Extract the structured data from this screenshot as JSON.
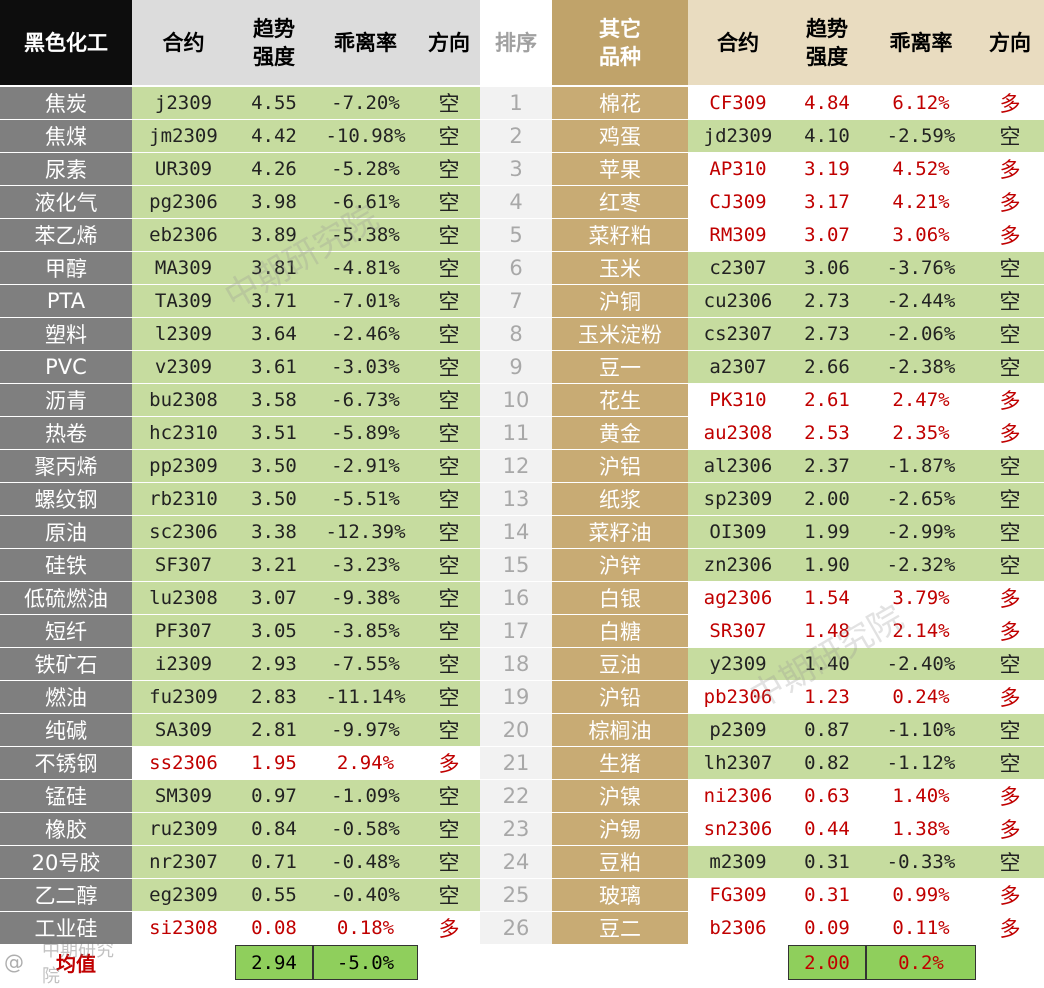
{
  "colors": {
    "black_header_bg": "#0d0d0d",
    "gray_header_bg": "#dcdcdc",
    "gold_header_bg": "#c0a36a",
    "tan_header_bg": "#e9dcc0",
    "left_name_bg": "#7f7f7f",
    "gold_name_bg": "#c8ab74",
    "rank_bg": "#f2f2f2",
    "green_bg": "#c6dc9f",
    "white_bg": "#ffffff",
    "red_text": "#c00000",
    "summary_green": "#8fcf5c",
    "summary_label": "#c00000"
  },
  "header": {
    "left_group": "黑色化工",
    "contract": "合约",
    "strength": "趋势\n强度",
    "deviation": "乖离率",
    "direction": "方向",
    "rank": "排序",
    "right_group": "其它\n品种",
    "contract_r": "合约",
    "strength_r": "趋势\n强度",
    "deviation_r": "乖离率",
    "direction_r": "方向"
  },
  "rows": [
    {
      "rank": "1",
      "left": {
        "name": "焦炭",
        "contract": "j2309",
        "strength": "4.55",
        "deviation": "-7.20%",
        "direction": "空",
        "dir": "short"
      },
      "right": {
        "name": "棉花",
        "contract": "CF309",
        "strength": "4.84",
        "deviation": "6.12%",
        "direction": "多",
        "dir": "long"
      }
    },
    {
      "rank": "2",
      "left": {
        "name": "焦煤",
        "contract": "jm2309",
        "strength": "4.42",
        "deviation": "-10.98%",
        "direction": "空",
        "dir": "short"
      },
      "right": {
        "name": "鸡蛋",
        "contract": "jd2309",
        "strength": "4.10",
        "deviation": "-2.59%",
        "direction": "空",
        "dir": "short"
      }
    },
    {
      "rank": "3",
      "left": {
        "name": "尿素",
        "contract": "UR309",
        "strength": "4.26",
        "deviation": "-5.28%",
        "direction": "空",
        "dir": "short"
      },
      "right": {
        "name": "苹果",
        "contract": "AP310",
        "strength": "3.19",
        "deviation": "4.52%",
        "direction": "多",
        "dir": "long"
      }
    },
    {
      "rank": "4",
      "left": {
        "name": "液化气",
        "contract": "pg2306",
        "strength": "3.98",
        "deviation": "-6.61%",
        "direction": "空",
        "dir": "short"
      },
      "right": {
        "name": "红枣",
        "contract": "CJ309",
        "strength": "3.17",
        "deviation": "4.21%",
        "direction": "多",
        "dir": "long"
      }
    },
    {
      "rank": "5",
      "left": {
        "name": "苯乙烯",
        "contract": "eb2306",
        "strength": "3.89",
        "deviation": "-5.38%",
        "direction": "空",
        "dir": "short"
      },
      "right": {
        "name": "菜籽粕",
        "contract": "RM309",
        "strength": "3.07",
        "deviation": "3.06%",
        "direction": "多",
        "dir": "long"
      }
    },
    {
      "rank": "6",
      "left": {
        "name": "甲醇",
        "contract": "MA309",
        "strength": "3.81",
        "deviation": "-4.81%",
        "direction": "空",
        "dir": "short"
      },
      "right": {
        "name": "玉米",
        "contract": "c2307",
        "strength": "3.06",
        "deviation": "-3.76%",
        "direction": "空",
        "dir": "short"
      }
    },
    {
      "rank": "7",
      "left": {
        "name": "PTA",
        "contract": "TA309",
        "strength": "3.71",
        "deviation": "-7.01%",
        "direction": "空",
        "dir": "short"
      },
      "right": {
        "name": "沪铜",
        "contract": "cu2306",
        "strength": "2.73",
        "deviation": "-2.44%",
        "direction": "空",
        "dir": "short"
      }
    },
    {
      "rank": "8",
      "left": {
        "name": "塑料",
        "contract": "l2309",
        "strength": "3.64",
        "deviation": "-2.46%",
        "direction": "空",
        "dir": "short"
      },
      "right": {
        "name": "玉米淀粉",
        "contract": "cs2307",
        "strength": "2.73",
        "deviation": "-2.06%",
        "direction": "空",
        "dir": "short"
      }
    },
    {
      "rank": "9",
      "left": {
        "name": "PVC",
        "contract": "v2309",
        "strength": "3.61",
        "deviation": "-3.03%",
        "direction": "空",
        "dir": "short"
      },
      "right": {
        "name": "豆一",
        "contract": "a2307",
        "strength": "2.66",
        "deviation": "-2.38%",
        "direction": "空",
        "dir": "short"
      }
    },
    {
      "rank": "10",
      "left": {
        "name": "沥青",
        "contract": "bu2308",
        "strength": "3.58",
        "deviation": "-6.73%",
        "direction": "空",
        "dir": "short"
      },
      "right": {
        "name": "花生",
        "contract": "PK310",
        "strength": "2.61",
        "deviation": "2.47%",
        "direction": "多",
        "dir": "long"
      }
    },
    {
      "rank": "11",
      "left": {
        "name": "热卷",
        "contract": "hc2310",
        "strength": "3.51",
        "deviation": "-5.89%",
        "direction": "空",
        "dir": "short"
      },
      "right": {
        "name": "黄金",
        "contract": "au2308",
        "strength": "2.53",
        "deviation": "2.35%",
        "direction": "多",
        "dir": "long"
      }
    },
    {
      "rank": "12",
      "left": {
        "name": "聚丙烯",
        "contract": "pp2309",
        "strength": "3.50",
        "deviation": "-2.91%",
        "direction": "空",
        "dir": "short"
      },
      "right": {
        "name": "沪铝",
        "contract": "al2306",
        "strength": "2.37",
        "deviation": "-1.87%",
        "direction": "空",
        "dir": "short"
      }
    },
    {
      "rank": "13",
      "left": {
        "name": "螺纹钢",
        "contract": "rb2310",
        "strength": "3.50",
        "deviation": "-5.51%",
        "direction": "空",
        "dir": "short"
      },
      "right": {
        "name": "纸浆",
        "contract": "sp2309",
        "strength": "2.00",
        "deviation": "-2.65%",
        "direction": "空",
        "dir": "short"
      }
    },
    {
      "rank": "14",
      "left": {
        "name": "原油",
        "contract": "sc2306",
        "strength": "3.38",
        "deviation": "-12.39%",
        "direction": "空",
        "dir": "short"
      },
      "right": {
        "name": "菜籽油",
        "contract": "OI309",
        "strength": "1.99",
        "deviation": "-2.99%",
        "direction": "空",
        "dir": "short"
      }
    },
    {
      "rank": "15",
      "left": {
        "name": "硅铁",
        "contract": "SF307",
        "strength": "3.21",
        "deviation": "-3.23%",
        "direction": "空",
        "dir": "short"
      },
      "right": {
        "name": "沪锌",
        "contract": "zn2306",
        "strength": "1.90",
        "deviation": "-2.32%",
        "direction": "空",
        "dir": "short"
      }
    },
    {
      "rank": "16",
      "left": {
        "name": "低硫燃油",
        "contract": "lu2308",
        "strength": "3.07",
        "deviation": "-9.38%",
        "direction": "空",
        "dir": "short"
      },
      "right": {
        "name": "白银",
        "contract": "ag2306",
        "strength": "1.54",
        "deviation": "3.79%",
        "direction": "多",
        "dir": "long"
      }
    },
    {
      "rank": "17",
      "left": {
        "name": "短纤",
        "contract": "PF307",
        "strength": "3.05",
        "deviation": "-3.85%",
        "direction": "空",
        "dir": "short"
      },
      "right": {
        "name": "白糖",
        "contract": "SR307",
        "strength": "1.48",
        "deviation": "2.14%",
        "direction": "多",
        "dir": "long"
      }
    },
    {
      "rank": "18",
      "left": {
        "name": "铁矿石",
        "contract": "i2309",
        "strength": "2.93",
        "deviation": "-7.55%",
        "direction": "空",
        "dir": "short"
      },
      "right": {
        "name": "豆油",
        "contract": "y2309",
        "strength": "1.40",
        "deviation": "-2.40%",
        "direction": "空",
        "dir": "short"
      }
    },
    {
      "rank": "19",
      "left": {
        "name": "燃油",
        "contract": "fu2309",
        "strength": "2.83",
        "deviation": "-11.14%",
        "direction": "空",
        "dir": "short"
      },
      "right": {
        "name": "沪铅",
        "contract": "pb2306",
        "strength": "1.23",
        "deviation": "0.24%",
        "direction": "多",
        "dir": "long"
      }
    },
    {
      "rank": "20",
      "left": {
        "name": "纯碱",
        "contract": "SA309",
        "strength": "2.81",
        "deviation": "-9.97%",
        "direction": "空",
        "dir": "short"
      },
      "right": {
        "name": "棕榈油",
        "contract": "p2309",
        "strength": "0.87",
        "deviation": "-1.10%",
        "direction": "空",
        "dir": "short"
      }
    },
    {
      "rank": "21",
      "left": {
        "name": "不锈钢",
        "contract": "ss2306",
        "strength": "1.95",
        "deviation": "2.94%",
        "direction": "多",
        "dir": "long"
      },
      "right": {
        "name": "生猪",
        "contract": "lh2307",
        "strength": "0.82",
        "deviation": "-1.12%",
        "direction": "空",
        "dir": "short"
      }
    },
    {
      "rank": "22",
      "left": {
        "name": "锰硅",
        "contract": "SM309",
        "strength": "0.97",
        "deviation": "-1.09%",
        "direction": "空",
        "dir": "short"
      },
      "right": {
        "name": "沪镍",
        "contract": "ni2306",
        "strength": "0.63",
        "deviation": "1.40%",
        "direction": "多",
        "dir": "long"
      }
    },
    {
      "rank": "23",
      "left": {
        "name": "橡胶",
        "contract": "ru2309",
        "strength": "0.84",
        "deviation": "-0.58%",
        "direction": "空",
        "dir": "short"
      },
      "right": {
        "name": "沪锡",
        "contract": "sn2306",
        "strength": "0.44",
        "deviation": "1.38%",
        "direction": "多",
        "dir": "long"
      }
    },
    {
      "rank": "24",
      "left": {
        "name": "20号胶",
        "contract": "nr2307",
        "strength": "0.71",
        "deviation": "-0.48%",
        "direction": "空",
        "dir": "short"
      },
      "right": {
        "name": "豆粕",
        "contract": "m2309",
        "strength": "0.31",
        "deviation": "-0.33%",
        "direction": "空",
        "dir": "short"
      }
    },
    {
      "rank": "25",
      "left": {
        "name": "乙二醇",
        "contract": "eg2309",
        "strength": "0.55",
        "deviation": "-0.40%",
        "direction": "空",
        "dir": "short"
      },
      "right": {
        "name": "玻璃",
        "contract": "FG309",
        "strength": "0.31",
        "deviation": "0.99%",
        "direction": "多",
        "dir": "long"
      }
    },
    {
      "rank": "26",
      "left": {
        "name": "工业硅",
        "contract": "si2308",
        "strength": "0.08",
        "deviation": "0.18%",
        "direction": "多",
        "dir": "long"
      },
      "right": {
        "name": "豆二",
        "contract": "b2306",
        "strength": "0.09",
        "deviation": "0.11%",
        "direction": "多",
        "dir": "long"
      }
    }
  ],
  "summary": {
    "label": "均值",
    "left_strength": "2.94",
    "left_deviation": "-5.0%",
    "right_strength": "2.00",
    "right_deviation": "0.2%"
  },
  "watermark": {
    "text_center": "中期研究院",
    "text_right": "中期研究院",
    "corner_logo": "@",
    "corner_text": "中期研究院"
  }
}
